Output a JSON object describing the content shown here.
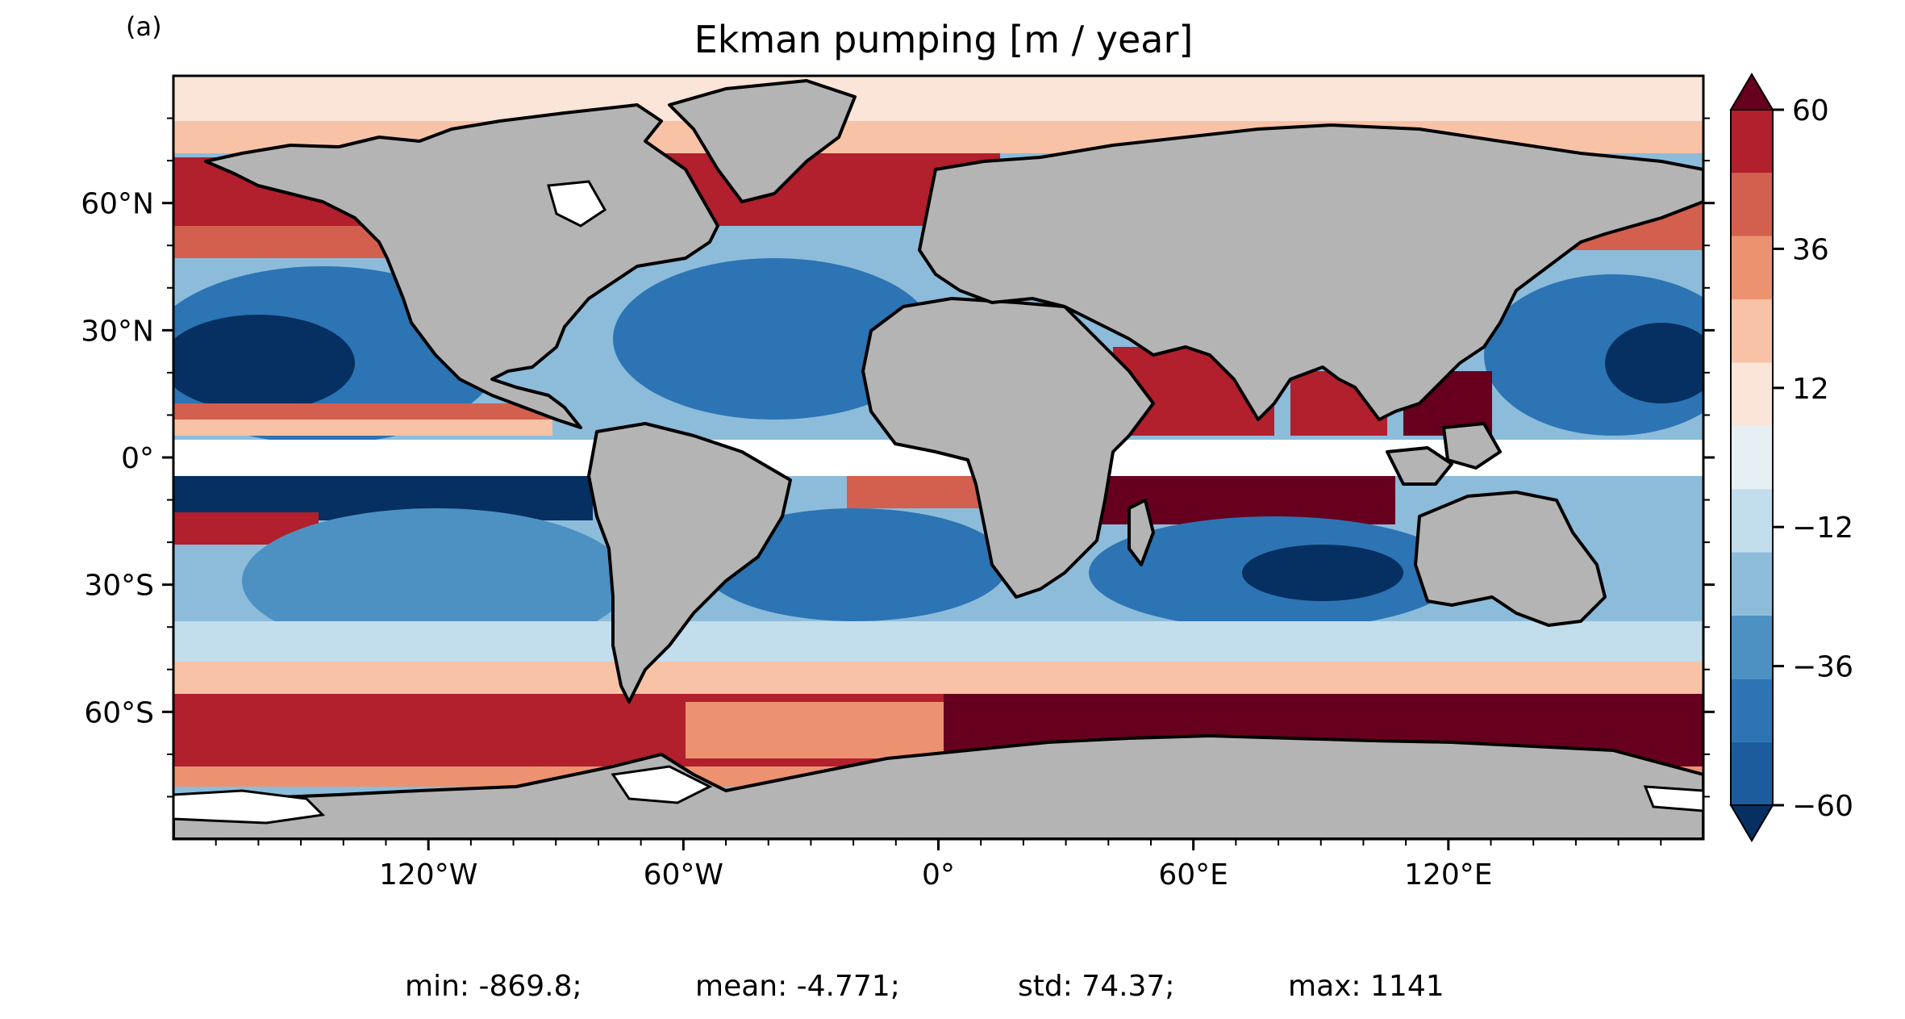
{
  "figure": {
    "panel_label": "(a)",
    "title": "Ekman pumping [m / year]"
  },
  "axes": {
    "lat_ticks": [
      {
        "value": 60,
        "label": "60°N"
      },
      {
        "value": 30,
        "label": "30°N"
      },
      {
        "value": 0,
        "label": "0°"
      },
      {
        "value": -30,
        "label": "30°S"
      },
      {
        "value": -60,
        "label": "60°S"
      }
    ],
    "lon_ticks": [
      {
        "value": -120,
        "label": "120°W"
      },
      {
        "value": -60,
        "label": "60°W"
      },
      {
        "value": 0,
        "label": "0°"
      },
      {
        "value": 60,
        "label": "60°E"
      },
      {
        "value": 120,
        "label": "120°E"
      }
    ],
    "lon_range": [
      -180,
      180
    ],
    "lat_range": [
      -90,
      90
    ]
  },
  "colorbar": {
    "min": -60,
    "max": 60,
    "extend": "both",
    "tick_labels": [
      {
        "value": 60,
        "label": "60"
      },
      {
        "value": 36,
        "label": "36"
      },
      {
        "value": 12,
        "label": "12"
      },
      {
        "value": -12,
        "label": "−12"
      },
      {
        "value": -36,
        "label": "−36"
      },
      {
        "value": -60,
        "label": "−60"
      }
    ],
    "bin_colors": [
      "#1c5c9c",
      "#2c74b4",
      "#4d91c3",
      "#8cbcda",
      "#c2ddec",
      "#e6eff4",
      "#fbe4d8",
      "#f8c2a6",
      "#ec9270",
      "#d35f4e",
      "#b21f2d"
    ],
    "under_color": "#053061",
    "over_color": "#67001f"
  },
  "colors": {
    "land": "#b4b4b4",
    "land_ice": "#ffffff",
    "coastline": "#000000"
  },
  "stats": {
    "min": "min: -869.8;",
    "mean": "mean: -4.771;",
    "std": "std: 74.37;",
    "max": "max: 1141"
  }
}
